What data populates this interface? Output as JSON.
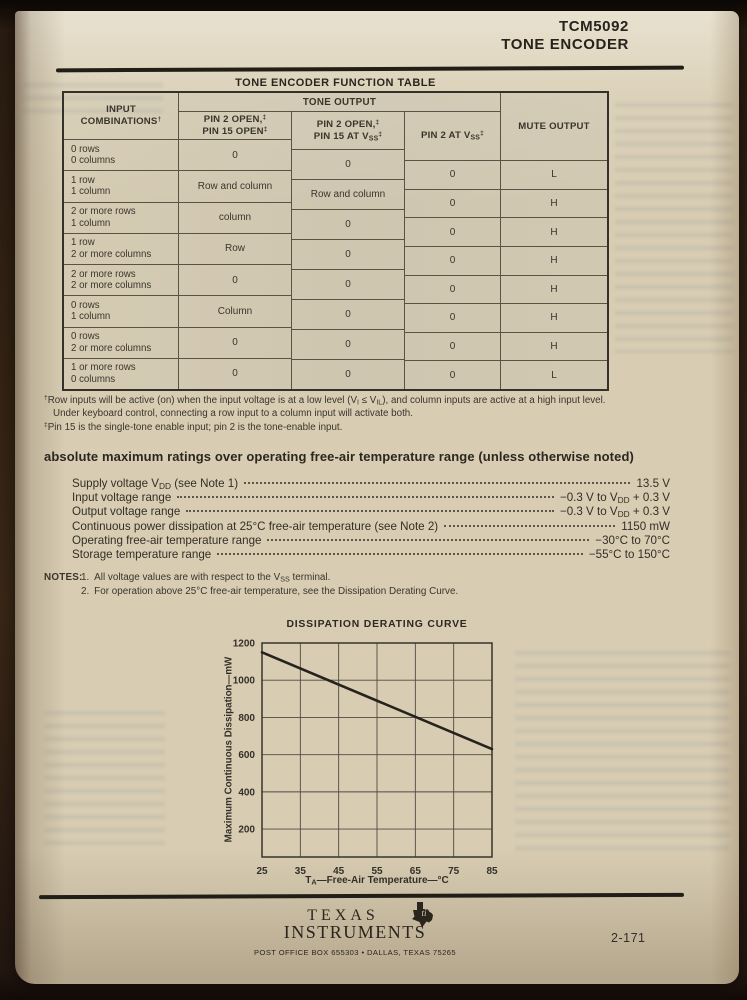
{
  "header": {
    "part_number": "TCM5092",
    "device_title": "TONE ENCODER"
  },
  "function_table": {
    "title": "TONE ENCODER FUNCTION TABLE",
    "cols": {
      "input_line1": "INPUT",
      "input_line2_rich": "COMBINATIONS<sup>†</sup>",
      "tone_output_group": "TONE OUTPUT",
      "pin2open_pin15open_l1_rich": "PIN 2 OPEN,<sup>‡</sup>",
      "pin2open_pin15open_l2_rich": "PIN 15 OPEN<sup>‡</sup>",
      "pin2open_pin15vss_l1_rich": "PIN 2 OPEN,<sup>‡</sup>",
      "pin2open_pin15vss_l2_rich": "PIN 15 AT V<sub>SS</sub><sup>‡</sup>",
      "pin2vss_rich": "PIN 2 AT V<sub>SS</sub><sup>‡</sup>",
      "mute_output": "MUTE OUTPUT"
    },
    "rows": [
      {
        "input": [
          "0 rows",
          "0 columns"
        ],
        "open_open": "0",
        "open_vss": "0",
        "vss": "0",
        "mute": "L"
      },
      {
        "input": [
          "1 row",
          "1 column"
        ],
        "open_open": "Row and column",
        "open_vss": "Row and column",
        "vss": "0",
        "mute": "H"
      },
      {
        "input": [
          "2 or more rows",
          "1 column"
        ],
        "open_open": "column",
        "open_vss": "0",
        "vss": "0",
        "mute": "H"
      },
      {
        "input": [
          "1 row",
          "2 or more columns"
        ],
        "open_open": "Row",
        "open_vss": "0",
        "vss": "0",
        "mute": "H"
      },
      {
        "input": [
          "2 or more rows",
          "2 or more columns"
        ],
        "open_open": "0",
        "open_vss": "0",
        "vss": "0",
        "mute": "H"
      },
      {
        "input": [
          "0 rows",
          "1 column"
        ],
        "open_open": "Column",
        "open_vss": "0",
        "vss": "0",
        "mute": "H"
      },
      {
        "input": [
          "0 rows",
          "2 or more columns"
        ],
        "open_open": "0",
        "open_vss": "0",
        "vss": "0",
        "mute": "H"
      },
      {
        "input": [
          "1 or more rows",
          "0 columns"
        ],
        "open_open": "0",
        "open_vss": "0",
        "vss": "0",
        "mute": "L"
      }
    ],
    "footnote_dagger_rich": "<sup>†</sup>Row inputs will be active (on) when the input voltage is at a low level (V<sub>I</sub> ≤ V<sub>IL</sub>), and column inputs are active at a high input level.",
    "footnote_dagger_line2": "Under keyboard control, connecting a row input to a column input will activate both.",
    "footnote_ddagger_rich": "<sup>‡</sup>Pin 15 is the single-tone enable input; pin 2 is the tone-enable input."
  },
  "abs_max": {
    "heading": "absolute maximum ratings over operating free-air temperature range (unless otherwise noted)",
    "items": [
      {
        "label_rich": "Supply voltage V<sub>DD</sub> (see Note 1)",
        "value_rich": "13.5 V"
      },
      {
        "label_rich": "Input voltage range",
        "value_rich": "−0.3 V to V<sub>DD</sub> + 0.3 V"
      },
      {
        "label_rich": "Output voltage range",
        "value_rich": "−0.3 V to V<sub>DD</sub> + 0.3 V"
      },
      {
        "label_rich": "Continuous power dissipation at 25°C free-air temperature (see Note 2)",
        "value_rich": "1150 mW"
      },
      {
        "label_rich": "Operating free-air temperature range",
        "value_rich": "−30°C to 70°C"
      },
      {
        "label_rich": "Storage temperature range",
        "value_rich": "−55°C to 150°C"
      }
    ],
    "notes_label": "NOTES:",
    "notes_rich": [
      "1. All voltage values are with respect to the V<sub>SS</sub> terminal.",
      "2. For operation above 25°C free-air temperature, see the Dissipation Derating Curve."
    ]
  },
  "chart": {
    "title": "DISSIPATION DERATING CURVE",
    "xlabel_rich": "T<sub>A</sub>—Free-Air Temperature—°C",
    "ylabel": "Maximum Continuous Dissipation—mW"
  },
  "chart_data": {
    "type": "line",
    "title": "DISSIPATION DERATING CURVE",
    "xlabel": "TA—Free-Air Temperature—°C",
    "ylabel": "Maximum Continuous Dissipation—mW",
    "x_ticks": [
      25,
      35,
      45,
      55,
      65,
      75,
      85
    ],
    "y_ticks": [
      200,
      400,
      600,
      800,
      1000,
      1200
    ],
    "xlim": [
      25,
      85
    ],
    "ylim": [
      50,
      1200
    ],
    "grid": true,
    "legend": false,
    "series": [
      {
        "name": "maximum continuous dissipation",
        "points": [
          [
            25,
            1150
          ],
          [
            85,
            630
          ]
        ]
      }
    ]
  },
  "footer": {
    "brand_line1": "TEXAS",
    "brand_line2": "INSTRUMENTS",
    "address": "POST OFFICE BOX 655303 • DALLAS, TEXAS 75265",
    "page_number": "2-171"
  }
}
